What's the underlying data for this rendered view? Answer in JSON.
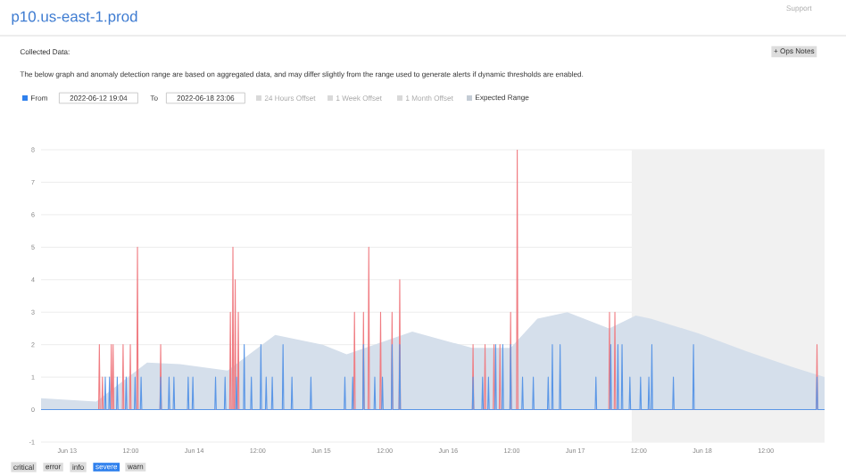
{
  "chart_data": {
    "type": "line",
    "title": "p10.us-east-1.prod",
    "annotations": [
      "Support",
      "Collected Data:",
      "The below graph and anomaly detection range are based on aggregated data, and may differ slightly from the range used to generate alerts if dynamic thresholds are enabled.",
      "+ Ops Notes",
      "From",
      "2022-06-12 19:04",
      "To",
      "2022-06-18 23:06",
      "24 Hours Offset",
      "1 Week Offset",
      "1 Month Offset",
      "critical",
      "error",
      "info",
      "severe",
      "warn"
    ],
    "xlim": [
      "2022-06-12T19:04",
      "2022-06-18T23:06"
    ],
    "xticks": [
      {
        "value": "2022-06-13T00:00",
        "label": "Jun 13"
      },
      {
        "value": "2022-06-13T12:00",
        "label": "12:00"
      },
      {
        "value": "2022-06-14T00:00",
        "label": "Jun 14"
      },
      {
        "value": "2022-06-14T12:00",
        "label": "12:00"
      },
      {
        "value": "2022-06-15T00:00",
        "label": "Jun 15"
      },
      {
        "value": "2022-06-15T12:00",
        "label": "12:00"
      },
      {
        "value": "2022-06-16T00:00",
        "label": "Jun 16"
      },
      {
        "value": "2022-06-16T12:00",
        "label": "12:00"
      },
      {
        "value": "2022-06-17T00:00",
        "label": "Jun 17"
      },
      {
        "value": "2022-06-17T12:00",
        "label": "12:00"
      },
      {
        "value": "2022-06-18T00:00",
        "label": "Jun 18"
      },
      {
        "value": "2022-06-18T12:00",
        "label": "12:00"
      }
    ],
    "ylim": [
      -1,
      8
    ],
    "yticks": [
      -1,
      0,
      1,
      2,
      3,
      4,
      5,
      6,
      7,
      8
    ],
    "grid": "y",
    "legend": "top",
    "bands": [
      {
        "axis": "x",
        "from": "2022-06-17T10:40",
        "to": "2022-06-18T23:06",
        "color": "#f1f1f1"
      }
    ],
    "series": [
      {
        "type": "area",
        "name": "Expected Range",
        "color": "#d5dfeb",
        "x": [
          "2022-06-12T19:04",
          "2022-06-13T05:30",
          "2022-06-13T15:06",
          "2022-06-13T21:17",
          "2022-06-14T06:18",
          "2022-06-14T15:18",
          "2022-06-15T00:18",
          "2022-06-15T04:48",
          "2022-06-15T17:12",
          "2022-06-16T04:30",
          "2022-06-16T11:47",
          "2022-06-16T16:51",
          "2022-06-16T22:30",
          "2022-06-17T06:24",
          "2022-06-17T11:26",
          "2022-06-17T14:14",
          "2022-06-17T23:16",
          "2022-06-18T08:18",
          "2022-06-18T17:16",
          "2022-06-18T23:06"
        ],
        "values": [
          0.35,
          0.25,
          1.45,
          1.4,
          1.2,
          2.3,
          2.0,
          1.7,
          2.4,
          1.9,
          1.9,
          2.8,
          3.0,
          2.5,
          2.9,
          2.8,
          2.35,
          1.8,
          1.3,
          1.0
        ]
      },
      {
        "color": "#f07c82",
        "x": [
          "2022-06-13T05:57",
          "2022-06-13T06:05",
          "2022-06-13T06:13",
          "2022-06-13T06:32",
          "2022-06-13T06:40",
          "2022-06-13T06:48",
          "2022-06-13T08:12",
          "2022-06-13T08:20",
          "2022-06-13T08:28",
          "2022-06-13T08:33",
          "2022-06-13T08:41",
          "2022-06-13T08:49",
          "2022-06-13T10:26",
          "2022-06-13T10:34",
          "2022-06-13T10:42",
          "2022-06-13T11:48",
          "2022-06-13T11:56",
          "2022-06-13T12:04",
          "2022-06-13T13:09",
          "2022-06-13T13:17",
          "2022-06-13T13:25",
          "2022-06-13T17:32",
          "2022-06-13T17:40",
          "2022-06-13T17:48",
          "2022-06-14T06:42",
          "2022-06-14T06:50",
          "2022-06-14T06:58",
          "2022-06-14T07:11",
          "2022-06-14T07:19",
          "2022-06-14T07:27",
          "2022-06-14T07:37",
          "2022-06-14T07:45",
          "2022-06-14T07:53",
          "2022-06-14T08:12",
          "2022-06-14T08:20",
          "2022-06-14T08:28",
          "2022-06-15T06:09",
          "2022-06-15T06:17",
          "2022-06-15T06:25",
          "2022-06-15T07:51",
          "2022-06-15T07:59",
          "2022-06-15T08:07",
          "2022-06-15T08:51",
          "2022-06-15T08:59",
          "2022-06-15T09:07",
          "2022-06-15T11:05",
          "2022-06-15T11:13",
          "2022-06-15T11:21",
          "2022-06-15T13:15",
          "2022-06-15T13:23",
          "2022-06-15T13:31",
          "2022-06-15T14:42",
          "2022-06-15T14:50",
          "2022-06-15T14:58",
          "2022-06-16T04:33",
          "2022-06-16T04:41",
          "2022-06-16T04:49",
          "2022-06-16T06:49",
          "2022-06-16T06:57",
          "2022-06-16T07:05",
          "2022-06-16T08:30",
          "2022-06-16T08:38",
          "2022-06-16T08:46",
          "2022-06-16T09:38",
          "2022-06-16T09:46",
          "2022-06-16T09:54",
          "2022-06-16T11:39",
          "2022-06-16T11:47",
          "2022-06-16T11:55",
          "2022-06-16T12:54",
          "2022-06-16T13:02",
          "2022-06-16T13:10",
          "2022-06-17T06:20",
          "2022-06-17T06:28",
          "2022-06-17T06:36",
          "2022-06-17T07:21",
          "2022-06-17T07:29",
          "2022-06-17T07:37",
          "2022-06-18T21:32",
          "2022-06-18T21:40",
          "2022-06-18T21:48"
        ],
        "values": [
          0,
          2,
          0,
          0,
          1,
          0,
          0,
          2,
          0,
          0,
          2,
          0,
          0,
          2,
          0,
          0,
          2,
          0,
          0,
          5,
          0,
          0,
          2,
          0,
          0,
          3,
          0,
          0,
          5,
          0,
          0,
          4,
          0,
          0,
          3,
          0,
          0,
          3,
          0,
          0,
          3,
          0,
          0,
          5,
          0,
          0,
          3,
          0,
          0,
          3,
          0,
          0,
          4,
          0,
          0,
          2,
          0,
          0,
          2,
          0,
          0,
          2,
          0,
          0,
          2,
          0,
          0,
          3,
          0,
          0,
          8,
          0,
          0,
          3,
          0,
          0,
          3,
          0,
          0,
          2,
          0
        ]
      },
      {
        "color": "#5a96e6",
        "x": [
          "2022-06-12T19:04",
          "2022-06-13T07:04",
          "2022-06-13T07:12",
          "2022-06-13T07:20",
          "2022-06-13T07:52",
          "2022-06-13T08:00",
          "2022-06-13T08:08",
          "2022-06-13T09:20",
          "2022-06-13T09:28",
          "2022-06-13T09:36",
          "2022-06-13T11:01",
          "2022-06-13T11:09",
          "2022-06-13T11:17",
          "2022-06-13T12:42",
          "2022-06-13T12:50",
          "2022-06-13T12:58",
          "2022-06-13T13:50",
          "2022-06-13T13:58",
          "2022-06-13T14:06",
          "2022-06-13T17:32",
          "2022-06-13T17:40",
          "2022-06-13T17:48",
          "2022-06-13T19:07",
          "2022-06-13T19:15",
          "2022-06-13T19:23",
          "2022-06-13T20:02",
          "2022-06-13T20:10",
          "2022-06-13T20:18",
          "2022-06-13T22:44",
          "2022-06-13T22:52",
          "2022-06-13T23:00",
          "2022-06-13T23:37",
          "2022-06-13T23:45",
          "2022-06-13T23:53",
          "2022-06-14T03:54",
          "2022-06-14T04:02",
          "2022-06-14T04:10",
          "2022-06-14T05:42",
          "2022-06-14T05:50",
          "2022-06-14T05:58",
          "2022-06-14T07:51",
          "2022-06-14T07:59",
          "2022-06-14T08:07",
          "2022-06-14T09:19",
          "2022-06-14T09:27",
          "2022-06-14T09:35",
          "2022-06-14T10:40",
          "2022-06-14T10:48",
          "2022-06-14T10:56",
          "2022-06-14T12:28",
          "2022-06-14T12:36",
          "2022-06-14T12:44",
          "2022-06-14T13:28",
          "2022-06-14T13:36",
          "2022-06-14T13:44",
          "2022-06-14T14:37",
          "2022-06-14T14:45",
          "2022-06-14T14:53",
          "2022-06-14T16:39",
          "2022-06-14T16:47",
          "2022-06-14T16:55",
          "2022-06-14T18:20",
          "2022-06-14T18:28",
          "2022-06-14T18:36",
          "2022-06-14T21:55",
          "2022-06-14T22:03",
          "2022-06-14T22:11",
          "2022-06-15T04:20",
          "2022-06-15T04:28",
          "2022-06-15T04:36",
          "2022-06-15T05:49",
          "2022-06-15T05:57",
          "2022-06-15T06:05",
          "2022-06-15T07:51",
          "2022-06-15T07:59",
          "2022-06-15T08:07",
          "2022-06-15T09:59",
          "2022-06-15T10:07",
          "2022-06-15T10:15",
          "2022-06-15T11:26",
          "2022-06-15T11:34",
          "2022-06-15T11:42",
          "2022-06-15T13:15",
          "2022-06-15T13:23",
          "2022-06-15T13:31",
          "2022-06-15T14:42",
          "2022-06-15T14:50",
          "2022-06-15T14:58",
          "2022-06-16T04:33",
          "2022-06-16T04:41",
          "2022-06-16T04:49",
          "2022-06-16T06:21",
          "2022-06-16T06:29",
          "2022-06-16T06:37",
          "2022-06-16T07:28",
          "2022-06-16T07:36",
          "2022-06-16T07:44",
          "2022-06-16T08:49",
          "2022-06-16T08:57",
          "2022-06-16T09:05",
          "2022-06-16T10:10",
          "2022-06-16T10:18",
          "2022-06-16T10:26",
          "2022-06-16T11:39",
          "2022-06-16T11:47",
          "2022-06-16T11:55",
          "2022-06-16T13:54",
          "2022-06-16T14:02",
          "2022-06-16T14:10",
          "2022-06-16T15:56",
          "2022-06-16T16:04",
          "2022-06-16T16:12",
          "2022-06-16T18:45",
          "2022-06-16T18:53",
          "2022-06-16T19:01",
          "2022-06-16T19:32",
          "2022-06-16T19:40",
          "2022-06-16T19:48",
          "2022-06-16T21:00",
          "2022-06-16T21:08",
          "2022-06-16T21:16",
          "2022-06-17T03:46",
          "2022-06-17T03:54",
          "2022-06-17T04:02",
          "2022-06-17T06:34",
          "2022-06-17T06:42",
          "2022-06-17T06:50",
          "2022-06-17T07:55",
          "2022-06-17T08:03",
          "2022-06-17T08:11",
          "2022-06-17T08:42",
          "2022-06-17T08:50",
          "2022-06-17T08:58",
          "2022-06-17T10:11",
          "2022-06-17T10:19",
          "2022-06-17T10:27",
          "2022-06-17T12:12",
          "2022-06-17T12:20",
          "2022-06-17T12:28",
          "2022-06-17T13:46",
          "2022-06-17T13:54",
          "2022-06-17T14:02",
          "2022-06-17T14:20",
          "2022-06-17T14:28",
          "2022-06-17T14:36",
          "2022-06-17T18:24",
          "2022-06-17T18:32",
          "2022-06-17T18:40",
          "2022-06-17T22:12",
          "2022-06-17T22:20",
          "2022-06-17T22:28",
          "2022-06-18T21:32",
          "2022-06-18T21:40",
          "2022-06-18T21:48",
          "2022-06-18T23:06"
        ],
        "values": [
          0,
          0,
          1,
          0,
          0,
          1,
          0,
          0,
          1,
          0,
          0,
          1,
          0,
          0,
          1,
          0,
          0,
          1,
          0,
          0,
          1,
          0,
          0,
          1,
          0,
          0,
          1,
          0,
          0,
          1,
          0,
          0,
          1,
          0,
          0,
          1,
          0,
          0,
          1,
          0,
          0,
          1,
          0,
          0,
          2,
          0,
          0,
          1,
          0,
          0,
          2,
          0,
          0,
          1,
          0,
          0,
          1,
          0,
          0,
          2,
          0,
          0,
          1,
          0,
          0,
          1,
          0,
          0,
          1,
          0,
          0,
          1,
          0,
          0,
          2,
          0,
          0,
          1,
          0,
          0,
          1,
          0,
          0,
          2,
          0,
          0,
          2,
          0,
          0,
          1,
          0,
          0,
          1,
          0,
          0,
          1,
          0,
          0,
          2,
          0,
          0,
          2,
          0,
          0,
          2,
          0,
          0,
          1,
          0,
          0,
          1,
          0,
          0,
          1,
          0,
          0,
          2,
          0,
          0,
          2,
          0,
          0,
          1,
          0,
          0,
          2,
          0,
          0,
          2,
          0,
          0,
          2,
          0,
          0,
          1,
          0,
          0,
          1,
          0,
          0,
          1,
          0,
          0,
          2,
          0,
          0,
          1,
          0,
          0,
          2,
          0,
          0,
          1,
          0,
          0
        ]
      }
    ]
  }
}
